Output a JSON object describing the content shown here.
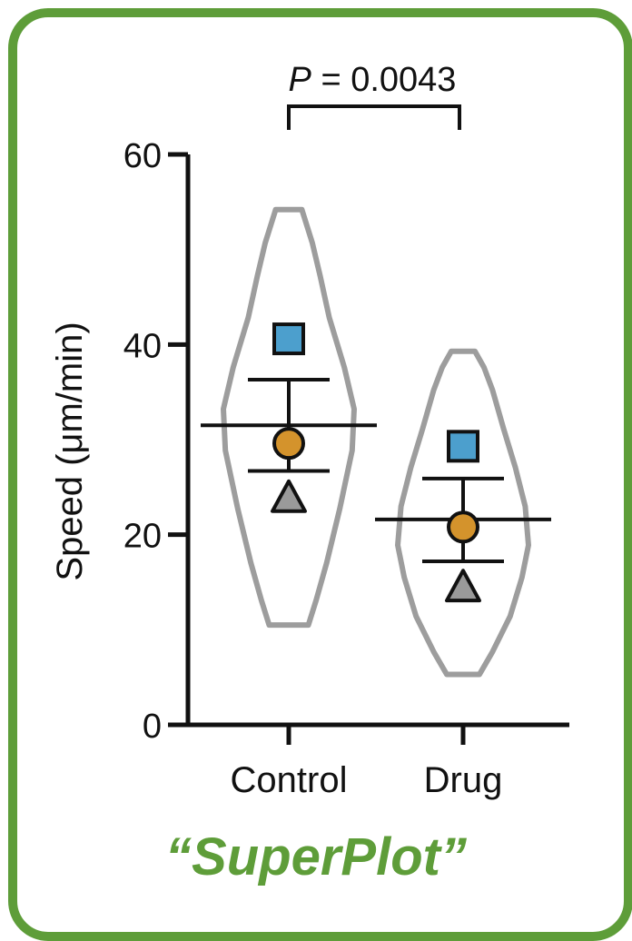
{
  "chart_data": {
    "type": "scatter",
    "subtype": "superplot-violin",
    "title": "“SuperPlot”",
    "ylabel": "Speed (μm/min)",
    "xlabel": "",
    "ylim": [
      0,
      60
    ],
    "yticks": [
      0,
      20,
      40,
      60
    ],
    "categories": [
      "Control",
      "Drug"
    ],
    "significance": {
      "p_label": "P",
      "p_text": " = 0.0043",
      "between": [
        "Control",
        "Drug"
      ]
    },
    "groups": [
      {
        "name": "Control",
        "mean": 31.5,
        "sd_upper": 36.3,
        "sd_lower": 26.7,
        "violin": {
          "min": 10.5,
          "max": 54.2
        },
        "replicates": [
          {
            "shape": "square",
            "value": 40.6
          },
          {
            "shape": "circle",
            "value": 29.6
          },
          {
            "shape": "triangle",
            "value": 24.0
          }
        ]
      },
      {
        "name": "Drug",
        "mean": 21.6,
        "sd_upper": 25.9,
        "sd_lower": 17.2,
        "violin": {
          "min": 5.3,
          "max": 39.3
        },
        "replicates": [
          {
            "shape": "square",
            "value": 29.3
          },
          {
            "shape": "circle",
            "value": 20.8
          },
          {
            "shape": "triangle",
            "value": 14.6
          }
        ]
      }
    ]
  },
  "colors": {
    "frame": "#5e9d39",
    "title": "#5e9d39",
    "violin": "#9d9d9d",
    "square": "#4c9fcd",
    "circle": "#d4932c",
    "triangle": "#9a9a9a",
    "axis": "#111111"
  }
}
